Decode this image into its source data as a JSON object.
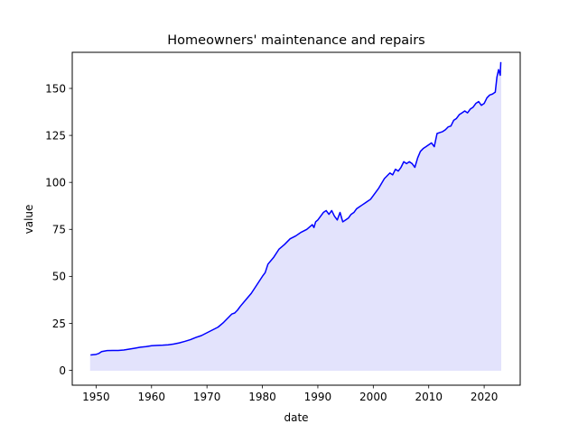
{
  "chart_data": {
    "type": "area",
    "title": "Homeowners' maintenance and repairs",
    "xlabel": "date",
    "ylabel": "value",
    "xlim": [
      1945.7,
      2026.5
    ],
    "ylim": [
      -7.9,
      169.2
    ],
    "xticks": [
      1950,
      1960,
      1970,
      1980,
      1990,
      2000,
      2010,
      2020
    ],
    "yticks": [
      0,
      25,
      50,
      75,
      100,
      125,
      150
    ],
    "grid": false,
    "line_color": "#0000ff",
    "fill_color": "#e3e3fc",
    "series": [
      {
        "x": [
          1949.0,
          1950.0,
          1950.5,
          1951.0,
          1952.0,
          1953.0,
          1954.0,
          1955.0,
          1956.0,
          1957.0,
          1958.0,
          1959.0,
          1960.0,
          1961.0,
          1962.0,
          1963.0,
          1964.0,
          1965.0,
          1966.0,
          1967.0,
          1968.0,
          1969.0,
          1970.0,
          1971.0,
          1972.0,
          1973.0,
          1974.0,
          1974.5,
          1975.0,
          1975.5,
          1976.0,
          1977.0,
          1978.0,
          1979.0,
          1980.0,
          1980.5,
          1981.0,
          1982.0,
          1983.0,
          1984.0,
          1985.0,
          1986.0,
          1987.0,
          1988.0,
          1989.0,
          1989.3,
          1989.6,
          1990.0,
          1990.5,
          1991.0,
          1991.5,
          1992.0,
          1992.5,
          1993.0,
          1993.5,
          1994.0,
          1994.5,
          1995.0,
          1995.5,
          1996.0,
          1996.5,
          1997.0,
          1997.5,
          1998.0,
          1998.5,
          1999.0,
          1999.5,
          2000.0,
          2001.0,
          2002.0,
          2003.0,
          2003.5,
          2004.0,
          2004.5,
          2005.0,
          2005.5,
          2006.0,
          2006.5,
          2007.0,
          2007.5,
          2008.0,
          2008.5,
          2009.0,
          2009.5,
          2010.0,
          2010.5,
          2011.0,
          2011.5,
          2012.0,
          2012.5,
          2013.0,
          2013.5,
          2014.0,
          2014.5,
          2015.0,
          2015.5,
          2016.0,
          2016.5,
          2017.0,
          2017.5,
          2018.0,
          2018.5,
          2019.0,
          2019.5,
          2020.0,
          2020.5,
          2021.0,
          2021.5,
          2022.0,
          2022.3,
          2022.6,
          2022.9,
          2023.0
        ],
        "y": [
          8.2,
          8.5,
          9.0,
          10.0,
          10.5,
          10.6,
          10.6,
          10.8,
          11.3,
          11.8,
          12.3,
          12.6,
          13.1,
          13.3,
          13.4,
          13.6,
          14.0,
          14.6,
          15.4,
          16.3,
          17.5,
          18.5,
          20.0,
          21.5,
          23.0,
          25.5,
          28.5,
          30.0,
          30.5,
          32.0,
          34.0,
          37.5,
          41.0,
          45.5,
          50.0,
          52.0,
          56.5,
          60.0,
          64.5,
          67.0,
          70.0,
          71.5,
          73.5,
          75.0,
          77.5,
          76.0,
          79.0,
          80.0,
          82.0,
          84.0,
          85.0,
          83.0,
          85.0,
          82.0,
          80.0,
          84.0,
          79.0,
          80.0,
          81.0,
          83.0,
          84.0,
          86.0,
          87.0,
          88.0,
          89.0,
          90.0,
          91.0,
          93.0,
          97.0,
          102.0,
          105.0,
          104.0,
          107.0,
          106.0,
          108.0,
          111.0,
          110.0,
          111.0,
          110.0,
          108.0,
          113.0,
          116.5,
          118.0,
          119.0,
          120.0,
          121.0,
          119.0,
          126.0,
          126.5,
          127.0,
          128.0,
          129.5,
          130.0,
          133.0,
          134.0,
          136.0,
          137.0,
          138.0,
          137.0,
          139.0,
          140.0,
          142.0,
          143.0,
          141.0,
          142.0,
          145.0,
          146.5,
          147.0,
          148.0,
          156.0,
          160.0,
          157.0,
          164.0
        ]
      }
    ]
  }
}
